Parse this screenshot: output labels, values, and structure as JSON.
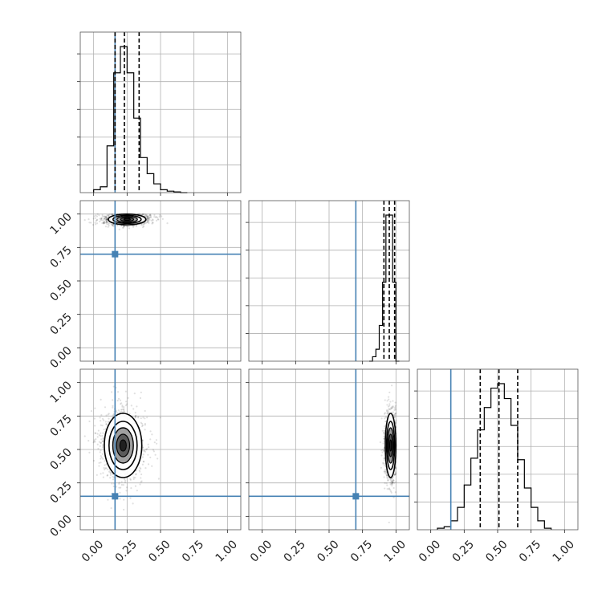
{
  "chart_data": {
    "type": "corner",
    "parameters": 3,
    "ticks": [
      0.0,
      0.25,
      0.5,
      0.75,
      1.0
    ],
    "tick_labels": [
      "0.00",
      "0.25",
      "0.50",
      "0.75",
      "1.00"
    ],
    "axis_range": [
      -0.1,
      1.1
    ],
    "grid": true,
    "truths": [
      0.16,
      0.7,
      0.15
    ],
    "quantile_lines": [
      [
        0.16,
        0.23,
        0.34
      ],
      [
        0.91,
        0.95,
        0.99
      ],
      [
        0.37,
        0.51,
        0.65
      ]
    ],
    "marginals": [
      {
        "bin_edges": [
          0.0,
          0.05,
          0.1,
          0.15,
          0.2,
          0.25,
          0.3,
          0.35,
          0.4,
          0.45,
          0.5,
          0.55,
          0.6,
          0.65,
          0.7
        ],
        "counts": [
          0.02,
          0.04,
          0.32,
          0.82,
          1.0,
          0.82,
          0.51,
          0.24,
          0.13,
          0.06,
          0.02,
          0.01,
          0.005,
          0.0
        ]
      },
      {
        "bin_edges": [
          0.8,
          0.825,
          0.85,
          0.875,
          0.9,
          0.925,
          0.95,
          0.975,
          1.0,
          1.025
        ],
        "counts": [
          0.0,
          0.03,
          0.08,
          0.24,
          0.53,
          0.98,
          0.98,
          0.53,
          0.0
        ]
      },
      {
        "bin_edges": [
          0.05,
          0.1,
          0.15,
          0.2,
          0.25,
          0.3,
          0.35,
          0.4,
          0.45,
          0.5,
          0.55,
          0.6,
          0.65,
          0.7,
          0.75,
          0.8,
          0.85,
          0.9
        ],
        "counts": [
          0.01,
          0.02,
          0.06,
          0.15,
          0.3,
          0.48,
          0.67,
          0.82,
          0.95,
          0.98,
          0.88,
          0.7,
          0.47,
          0.28,
          0.15,
          0.06,
          0.01
        ]
      }
    ],
    "joints": [
      {
        "x_param": 0,
        "y_param": 1,
        "mean": [
          0.25,
          0.96
        ],
        "sd": [
          0.07,
          0.02
        ]
      },
      {
        "x_param": 0,
        "y_param": 2,
        "mean": [
          0.22,
          0.53
        ],
        "sd": [
          0.07,
          0.12
        ]
      },
      {
        "x_param": 1,
        "y_param": 2,
        "mean": [
          0.96,
          0.53
        ],
        "sd": [
          0.02,
          0.12
        ]
      }
    ]
  }
}
